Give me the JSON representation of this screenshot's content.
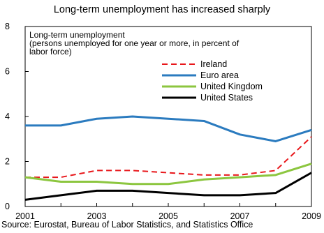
{
  "chart_data": {
    "type": "line",
    "title": "Long-term unemployment has increased sharply",
    "note": [
      "Long-term unemployment",
      "(persons unemployed for one year or more, in percent of",
      "labor force)"
    ],
    "x": [
      2001,
      2002,
      2003,
      2004,
      2005,
      2006,
      2007,
      2008,
      2009
    ],
    "x_ticks": [
      "2001",
      "2003",
      "2005",
      "2007",
      "2009"
    ],
    "y_ticks": [
      "0",
      "2",
      "4",
      "6",
      "8"
    ],
    "ylim": [
      0,
      8
    ],
    "xlim": [
      2001,
      2009
    ],
    "grid": false,
    "legend_position": "top-right",
    "series": [
      {
        "name": "Ireland",
        "color": "#e8171b",
        "dash": true,
        "values": [
          1.3,
          1.3,
          1.6,
          1.6,
          1.5,
          1.4,
          1.4,
          1.6,
          3.1
        ]
      },
      {
        "name": "Euro area",
        "color": "#2b7bbf",
        "dash": false,
        "values": [
          3.6,
          3.6,
          3.9,
          4.0,
          3.9,
          3.8,
          3.2,
          2.9,
          3.4
        ]
      },
      {
        "name": "United Kingdom",
        "color": "#8cc63f",
        "dash": false,
        "values": [
          1.3,
          1.1,
          1.1,
          1.0,
          1.0,
          1.2,
          1.3,
          1.4,
          1.9
        ]
      },
      {
        "name": "United States",
        "color": "#000000",
        "dash": false,
        "values": [
          0.3,
          0.5,
          0.7,
          0.7,
          0.6,
          0.5,
          0.5,
          0.6,
          1.5
        ]
      }
    ],
    "source": "Source: Eurostat, Bureau of Labor Statistics, and Statistics Office"
  }
}
